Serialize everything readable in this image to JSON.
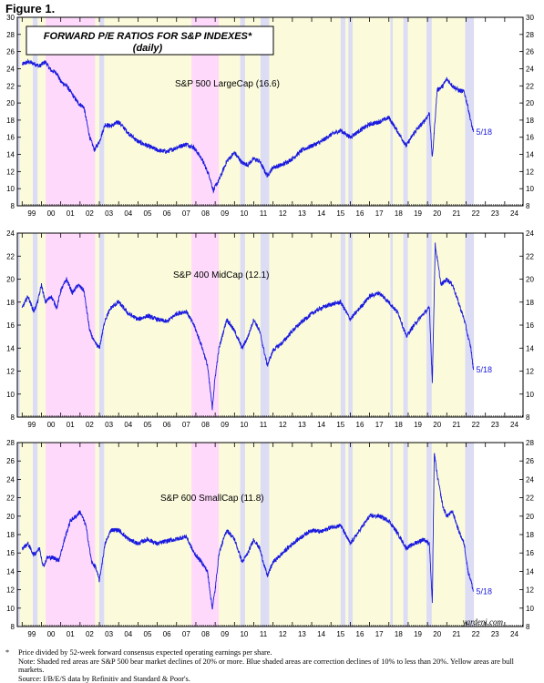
{
  "figure_label": "Figure 1.",
  "footnotes": [
    {
      "mark": "*",
      "text": "Price divided by 52-week forward consensus expected operating earnings per share."
    },
    {
      "mark": "",
      "text": "Note: Shaded red areas are S&P 500 bear market declines of 20% or more. Blue shaded areas are correction declines of 10% to less than 20%. Yellow areas are bull markets."
    },
    {
      "mark": "",
      "text": "Source: I/B/E/S data by Refinitiv and Standard & Poor's."
    }
  ],
  "colors": {
    "line": "#1a1adf",
    "bear": "#ffd9fb",
    "correction": "#dcdcf5",
    "bull": "#fbfbdc"
  },
  "chart_data": {
    "type": "line",
    "title": "FORWARD P/E RATIOS FOR S&P INDEXES*",
    "subtitle": "(daily)",
    "credit": "yardeni.com",
    "x_tick_labels": [
      "99",
      "00",
      "01",
      "02",
      "03",
      "04",
      "05",
      "06",
      "07",
      "08",
      "09",
      "10",
      "11",
      "12",
      "13",
      "14",
      "15",
      "16",
      "17",
      "18",
      "19",
      "20",
      "21",
      "22",
      "23",
      "24"
    ],
    "xlim": [
      1998.75,
      2024.95
    ],
    "shading": {
      "bear": [
        [
          2000.22,
          2002.78
        ],
        [
          2007.77,
          2009.19
        ]
      ],
      "correction": [
        [
          1998.75,
          1998.88
        ],
        [
          1999.55,
          1999.8
        ],
        [
          2003.0,
          2003.25
        ],
        [
          2010.3,
          2010.55
        ],
        [
          2011.35,
          2011.8
        ],
        [
          2015.5,
          2015.75
        ],
        [
          2015.9,
          2016.12
        ],
        [
          2018.08,
          2018.2
        ],
        [
          2018.75,
          2018.98
        ],
        [
          2019.95,
          2020.22
        ],
        [
          2021.95,
          2022.4
        ]
      ]
    },
    "panels": [
      {
        "label": "S&P 500 LargeCap (16.6)",
        "end_label": "5/18",
        "ylim": [
          8,
          30
        ],
        "yticks": [
          8,
          10,
          12,
          14,
          16,
          18,
          20,
          22,
          24,
          26,
          28,
          30
        ],
        "x": [
          1999.0,
          1999.3,
          1999.6,
          1999.9,
          2000.2,
          2000.5,
          2000.8,
          2001.0,
          2001.3,
          2001.6,
          2001.9,
          2002.2,
          2002.5,
          2002.75,
          2003.0,
          2003.3,
          2003.6,
          2004.0,
          2004.5,
          2005.0,
          2005.5,
          2006.0,
          2006.5,
          2007.0,
          2007.5,
          2007.9,
          2008.3,
          2008.7,
          2008.9,
          2009.2,
          2009.6,
          2010.0,
          2010.4,
          2010.7,
          2011.0,
          2011.3,
          2011.7,
          2012.0,
          2012.5,
          2013.0,
          2013.5,
          2014.0,
          2014.5,
          2015.0,
          2015.5,
          2016.0,
          2016.5,
          2017.0,
          2017.5,
          2018.0,
          2018.5,
          2018.9,
          2019.3,
          2019.8,
          2020.1,
          2020.25,
          2020.5,
          2020.8,
          2021.0,
          2021.3,
          2021.6,
          2021.9,
          2022.1,
          2022.25,
          2022.38
        ],
        "values": [
          24.5,
          24.8,
          24.6,
          24.3,
          24.8,
          23.8,
          23.5,
          22.5,
          22.0,
          21.0,
          20.0,
          19.5,
          16.0,
          14.5,
          15.5,
          17.5,
          17.3,
          17.8,
          16.5,
          15.5,
          15.0,
          14.5,
          14.3,
          14.8,
          15.2,
          14.8,
          13.5,
          11.5,
          9.8,
          11.0,
          13.2,
          14.2,
          13.0,
          12.8,
          13.5,
          13.2,
          11.5,
          12.5,
          12.8,
          13.5,
          14.5,
          15.0,
          15.5,
          16.3,
          16.8,
          16.0,
          16.8,
          17.5,
          17.8,
          18.3,
          16.5,
          15.0,
          16.5,
          17.8,
          18.8,
          13.5,
          21.5,
          22.0,
          22.8,
          22.0,
          21.5,
          21.3,
          19.5,
          17.8,
          16.6
        ]
      },
      {
        "label": "S&P 400 MidCap (12.1)",
        "end_label": "5/18",
        "ylim": [
          8,
          24
        ],
        "yticks": [
          8,
          10,
          12,
          14,
          16,
          18,
          20,
          22,
          24
        ],
        "x": [
          1999.0,
          1999.3,
          1999.6,
          1999.8,
          2000.0,
          2000.2,
          2000.5,
          2000.8,
          2001.0,
          2001.3,
          2001.6,
          2001.9,
          2002.2,
          2002.5,
          2002.75,
          2003.0,
          2003.3,
          2003.6,
          2004.0,
          2004.5,
          2005.0,
          2005.5,
          2006.0,
          2006.5,
          2007.0,
          2007.5,
          2007.9,
          2008.3,
          2008.6,
          2008.85,
          2009.0,
          2009.2,
          2009.6,
          2010.0,
          2010.4,
          2010.7,
          2011.0,
          2011.3,
          2011.7,
          2012.0,
          2012.5,
          2013.0,
          2013.5,
          2014.0,
          2014.5,
          2015.0,
          2015.5,
          2016.0,
          2016.5,
          2017.0,
          2017.5,
          2018.0,
          2018.5,
          2018.9,
          2019.3,
          2019.8,
          2020.1,
          2020.25,
          2020.4,
          2020.7,
          2021.0,
          2021.3,
          2021.6,
          2021.9,
          2022.1,
          2022.25,
          2022.38
        ],
        "values": [
          17.5,
          18.5,
          17.2,
          18.0,
          19.5,
          18.0,
          18.5,
          17.5,
          19.0,
          20.0,
          18.8,
          19.5,
          19.0,
          15.5,
          14.5,
          14.0,
          16.5,
          17.5,
          18.0,
          17.0,
          16.5,
          16.8,
          16.5,
          16.3,
          17.0,
          17.2,
          16.0,
          14.2,
          12.5,
          8.8,
          11.5,
          14.0,
          16.5,
          15.5,
          14.0,
          15.0,
          16.5,
          15.5,
          12.5,
          13.8,
          14.5,
          15.5,
          16.3,
          17.0,
          17.5,
          17.8,
          18.0,
          16.5,
          17.5,
          18.5,
          18.8,
          18.0,
          17.0,
          15.0,
          16.0,
          17.0,
          17.5,
          11.0,
          23.0,
          19.5,
          20.0,
          19.5,
          18.0,
          16.5,
          15.0,
          14.0,
          12.1
        ]
      },
      {
        "label": "S&P 600 SmallCap (11.8)",
        "end_label": "5/18",
        "ylim": [
          8,
          28
        ],
        "yticks": [
          8,
          10,
          12,
          14,
          16,
          18,
          20,
          22,
          24,
          26,
          28
        ],
        "x": [
          1999.0,
          1999.3,
          1999.6,
          1999.9,
          2000.1,
          2000.3,
          2000.6,
          2000.9,
          2001.2,
          2001.5,
          2001.8,
          2002.0,
          2002.3,
          2002.6,
          2002.8,
          2003.0,
          2003.3,
          2003.6,
          2004.0,
          2004.5,
          2005.0,
          2005.5,
          2006.0,
          2006.5,
          2007.0,
          2007.5,
          2007.9,
          2008.3,
          2008.6,
          2008.85,
          2009.0,
          2009.2,
          2009.6,
          2010.0,
          2010.4,
          2010.7,
          2011.0,
          2011.3,
          2011.7,
          2012.0,
          2012.5,
          2013.0,
          2013.5,
          2014.0,
          2014.5,
          2015.0,
          2015.5,
          2016.0,
          2016.5,
          2017.0,
          2017.5,
          2018.0,
          2018.5,
          2018.9,
          2019.3,
          2019.8,
          2020.1,
          2020.25,
          2020.35,
          2020.5,
          2020.8,
          2021.0,
          2021.3,
          2021.6,
          2021.9,
          2022.1,
          2022.25,
          2022.38
        ],
        "values": [
          16.5,
          17.0,
          15.8,
          16.5,
          14.5,
          15.5,
          15.5,
          15.2,
          17.5,
          19.5,
          20.0,
          20.5,
          19.0,
          15.0,
          14.5,
          13.0,
          17.0,
          18.5,
          18.5,
          17.5,
          17.0,
          17.5,
          17.0,
          17.3,
          17.5,
          17.8,
          16.0,
          15.0,
          14.0,
          10.0,
          12.0,
          16.0,
          18.5,
          17.5,
          15.0,
          16.0,
          17.5,
          16.5,
          13.5,
          15.0,
          16.0,
          17.0,
          17.8,
          18.5,
          18.3,
          18.8,
          19.0,
          17.0,
          18.5,
          20.0,
          20.0,
          19.5,
          18.0,
          16.5,
          17.0,
          17.5,
          17.0,
          10.5,
          27.0,
          24.5,
          21.0,
          20.0,
          20.5,
          18.5,
          17.0,
          14.0,
          13.0,
          11.8
        ]
      }
    ]
  }
}
